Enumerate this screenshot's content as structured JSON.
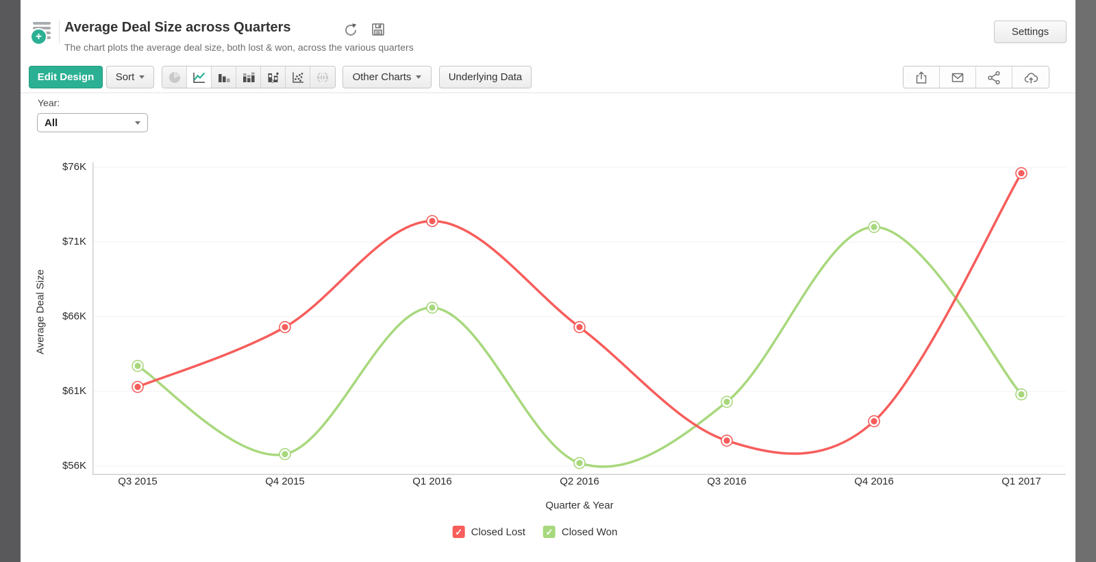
{
  "header": {
    "title": "Average Deal Size across Quarters",
    "subtitle": "The chart plots the average deal size, both lost & won, across the various quarters",
    "settings_label": "Settings",
    "report_icon": "report-list-add-icon",
    "title_action_icons": [
      "refresh-icon",
      "save-icon"
    ]
  },
  "toolbar": {
    "edit_design_label": "Edit Design",
    "sort_label": "Sort",
    "other_charts_label": "Other Charts",
    "underlying_data_label": "Underlying Data",
    "chart_type_icons": [
      {
        "name": "pie-chart-icon",
        "state": "disabled"
      },
      {
        "name": "line-chart-icon",
        "state": "selected"
      },
      {
        "name": "bar-chart-icon",
        "state": "normal"
      },
      {
        "name": "stacked-bar-chart-icon",
        "state": "normal"
      },
      {
        "name": "bubble-chart-icon",
        "state": "normal"
      },
      {
        "name": "scatter-chart-icon",
        "state": "normal"
      },
      {
        "name": "map-chart-icon",
        "state": "disabled"
      }
    ],
    "action_icons": [
      "export-icon",
      "email-icon",
      "share-icon",
      "publish-cloud-icon"
    ]
  },
  "filter": {
    "label": "Year:",
    "value": "All"
  },
  "chart_data": {
    "type": "line",
    "curve": "smooth",
    "title": "",
    "xlabel": "Quarter & Year",
    "ylabel": "Average Deal Size",
    "categories": [
      "Q3 2015",
      "Q4 2015",
      "Q1 2016",
      "Q2 2016",
      "Q3 2016",
      "Q4 2016",
      "Q1 2017"
    ],
    "series": [
      {
        "name": "Closed Lost",
        "color": "#f65d5b",
        "values": [
          61.3,
          65.3,
          72.4,
          65.3,
          57.7,
          59.0,
          75.6
        ]
      },
      {
        "name": "Closed Won",
        "color": "#a8d87d",
        "values": [
          62.7,
          56.8,
          66.6,
          56.2,
          60.3,
          72.0,
          60.8
        ]
      }
    ],
    "unit": "USD thousands",
    "ylim": [
      56,
      76
    ],
    "yticks": [
      76,
      71,
      66,
      61,
      56
    ],
    "ytick_prefix": "$",
    "ytick_suffix": "K",
    "grid": true,
    "legend_position": "bottom"
  },
  "colors": {
    "accent_green": "#2bb093",
    "grid": "#f2f2f2",
    "axis": "#cfcfcf",
    "closed_lost": "#f65d5b",
    "closed_won": "#a8d87d"
  }
}
